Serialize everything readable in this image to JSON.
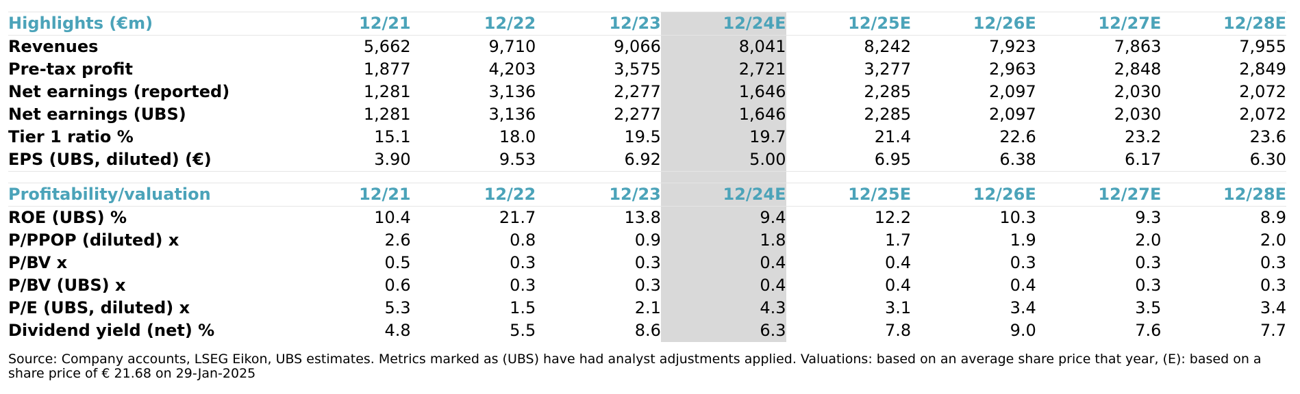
{
  "highlights": {
    "title": "Highlights (€m)",
    "columns": [
      "12/21",
      "12/22",
      "12/23",
      "12/24E",
      "12/25E",
      "12/26E",
      "12/27E",
      "12/28E"
    ],
    "rows": [
      {
        "label": "Revenues",
        "values": [
          "5,662",
          "9,710",
          "9,066",
          "8,041",
          "8,242",
          "7,923",
          "7,863",
          "7,955"
        ]
      },
      {
        "label": "Pre-tax profit",
        "values": [
          "1,877",
          "4,203",
          "3,575",
          "2,721",
          "3,277",
          "2,963",
          "2,848",
          "2,849"
        ]
      },
      {
        "label": "Net earnings (reported)",
        "values": [
          "1,281",
          "3,136",
          "2,277",
          "1,646",
          "2,285",
          "2,097",
          "2,030",
          "2,072"
        ]
      },
      {
        "label": "Net earnings (UBS)",
        "values": [
          "1,281",
          "3,136",
          "2,277",
          "1,646",
          "2,285",
          "2,097",
          "2,030",
          "2,072"
        ]
      },
      {
        "label": "Tier 1 ratio %",
        "values": [
          "15.1",
          "18.0",
          "19.5",
          "19.7",
          "21.4",
          "22.6",
          "23.2",
          "23.6"
        ]
      },
      {
        "label": "EPS (UBS, diluted) (€)",
        "values": [
          "3.90",
          "9.53",
          "6.92",
          "5.00",
          "6.95",
          "6.38",
          "6.17",
          "6.30"
        ]
      }
    ]
  },
  "profitability": {
    "title": "Profitability/valuation",
    "columns": [
      "12/21",
      "12/22",
      "12/23",
      "12/24E",
      "12/25E",
      "12/26E",
      "12/27E",
      "12/28E"
    ],
    "rows": [
      {
        "label": "ROE (UBS) %",
        "values": [
          "10.4",
          "21.7",
          "13.8",
          "9.4",
          "12.2",
          "10.3",
          "9.3",
          "8.9"
        ]
      },
      {
        "label": "P/PPOP (diluted) x",
        "values": [
          "2.6",
          "0.8",
          "0.9",
          "1.8",
          "1.7",
          "1.9",
          "2.0",
          "2.0"
        ]
      },
      {
        "label": "P/BV x",
        "values": [
          "0.5",
          "0.3",
          "0.3",
          "0.4",
          "0.4",
          "0.3",
          "0.3",
          "0.3"
        ]
      },
      {
        "label": "P/BV (UBS) x",
        "values": [
          "0.6",
          "0.3",
          "0.3",
          "0.4",
          "0.4",
          "0.4",
          "0.3",
          "0.3"
        ]
      },
      {
        "label": "P/E (UBS, diluted) x",
        "values": [
          "5.3",
          "1.5",
          "2.1",
          "4.3",
          "3.1",
          "3.4",
          "3.5",
          "3.4"
        ]
      },
      {
        "label": "Dividend yield (net) %",
        "values": [
          "4.8",
          "5.5",
          "8.6",
          "6.3",
          "7.8",
          "9.0",
          "7.6",
          "7.7"
        ]
      }
    ]
  },
  "source_note": "Source: Company accounts, LSEG Eikon, UBS estimates. Metrics marked as (UBS) have had analyst adjustments applied. Valuations: based on an average share price that year, (E): based on a share price of € 21.68 on 29-Jan-2025",
  "colors": {
    "header_text": "#4ba3b9",
    "highlight_column": "#d9d9d9"
  }
}
